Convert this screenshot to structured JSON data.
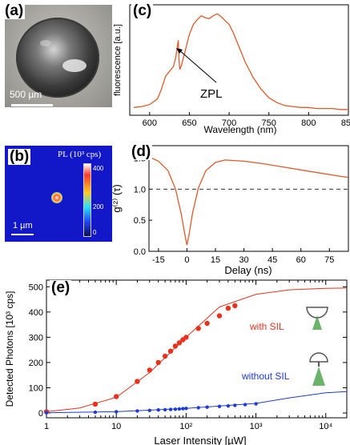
{
  "panel_a": {
    "label": "(a)",
    "scalebar": "500 µm"
  },
  "panel_b": {
    "label": "(b)",
    "title": "PL (10³ cps)",
    "scalebar": "1 µm",
    "colorbar_ticks": [
      "400",
      "200",
      "0"
    ]
  },
  "panel_c": {
    "label": "(c)",
    "annotation": "ZPL"
  },
  "panel_d": {
    "label": "(d)"
  },
  "panel_e": {
    "label": "(e)"
  },
  "chart_data": [
    {
      "type": "line",
      "panel": "(c)",
      "xlabel": "Wavelength (nm)",
      "ylabel": "fluorescence [a.u.]",
      "xlim": [
        575,
        850
      ],
      "xticks": [
        "600",
        "650",
        "700",
        "750",
        "800",
        "850"
      ],
      "annotation": "ZPL",
      "color": "#e05a2a",
      "x": [
        580,
        590,
        600,
        610,
        615,
        620,
        625,
        630,
        633,
        636,
        637,
        638,
        640,
        645,
        650,
        655,
        660,
        665,
        670,
        675,
        680,
        685,
        690,
        695,
        700,
        705,
        710,
        715,
        720,
        730,
        740,
        750,
        760,
        770,
        780,
        790,
        800,
        810,
        820,
        830,
        840,
        850
      ],
      "y": [
        0.03,
        0.04,
        0.06,
        0.12,
        0.22,
        0.35,
        0.4,
        0.45,
        0.55,
        0.72,
        0.52,
        0.42,
        0.46,
        0.62,
        0.78,
        0.88,
        0.93,
        0.97,
        0.95,
        0.94,
        0.97,
        0.99,
        0.96,
        0.92,
        0.88,
        0.8,
        0.7,
        0.6,
        0.5,
        0.34,
        0.22,
        0.13,
        0.08,
        0.05,
        0.04,
        0.03,
        0.03,
        0.02,
        0.02,
        0.02,
        0.01,
        0.01
      ]
    },
    {
      "type": "line",
      "panel": "(d)",
      "xlabel": "Delay (ns)",
      "ylabel": "g⁽²⁾ (τ)",
      "xlim": [
        -20,
        85
      ],
      "ylim": [
        0,
        1.7
      ],
      "xticks": [
        "-15",
        "0",
        "15",
        "30",
        "45",
        "60",
        "75"
      ],
      "yticks": [
        "0.0",
        "0.5",
        "1.0",
        "1.5"
      ],
      "reference_line": 1.0,
      "color": "#e05a2a",
      "x": [
        -20,
        -15,
        -10,
        -6,
        -3,
        -1,
        0,
        1,
        3,
        6,
        10,
        15,
        20,
        25,
        30,
        40,
        50,
        60,
        70,
        80,
        85
      ],
      "y": [
        1.52,
        1.45,
        1.3,
        1.0,
        0.6,
        0.25,
        0.1,
        0.25,
        0.62,
        1.02,
        1.3,
        1.43,
        1.47,
        1.46,
        1.45,
        1.41,
        1.36,
        1.31,
        1.26,
        1.21,
        1.19
      ]
    },
    {
      "type": "scatter",
      "panel": "(e)",
      "xlabel": "Laser Intensity [µW]",
      "ylabel": "Detected Photons [10³ cps]",
      "xscale": "log",
      "xlim": [
        1,
        20000
      ],
      "ylim": [
        0,
        520
      ],
      "xticks": [
        "1",
        "10",
        "10²",
        "10³",
        "10⁴"
      ],
      "yticks": [
        "0",
        "100",
        "200",
        "300",
        "400",
        "500"
      ],
      "series": [
        {
          "name": "with SIL",
          "color": "#e8321e",
          "x": [
            1,
            5,
            10,
            20,
            30,
            40,
            50,
            60,
            70,
            80,
            90,
            100,
            150,
            200,
            300,
            400,
            500
          ],
          "y": [
            5,
            35,
            65,
            125,
            170,
            200,
            225,
            245,
            265,
            278,
            290,
            300,
            335,
            355,
            385,
            415,
            425
          ],
          "fit_x": [
            1,
            3,
            10,
            30,
            100,
            300,
            1000,
            3000,
            10000,
            20000
          ],
          "fit_y": [
            5,
            20,
            62,
            160,
            300,
            420,
            470,
            488,
            494,
            495
          ]
        },
        {
          "name": "without SIL",
          "color": "#1e3ad8",
          "x": [
            1,
            5,
            10,
            20,
            30,
            40,
            50,
            60,
            70,
            80,
            90,
            100,
            150,
            200,
            300,
            400,
            500,
            700,
            1000
          ],
          "y": [
            1,
            3,
            5,
            8,
            10,
            12,
            13,
            14,
            15,
            16,
            17,
            18,
            21,
            23,
            26,
            28,
            30,
            33,
            36
          ],
          "fit_x": [
            1,
            10,
            100,
            1000,
            3000,
            10000,
            20000
          ],
          "fit_y": [
            1,
            5,
            18,
            38,
            60,
            80,
            85
          ]
        }
      ]
    }
  ]
}
